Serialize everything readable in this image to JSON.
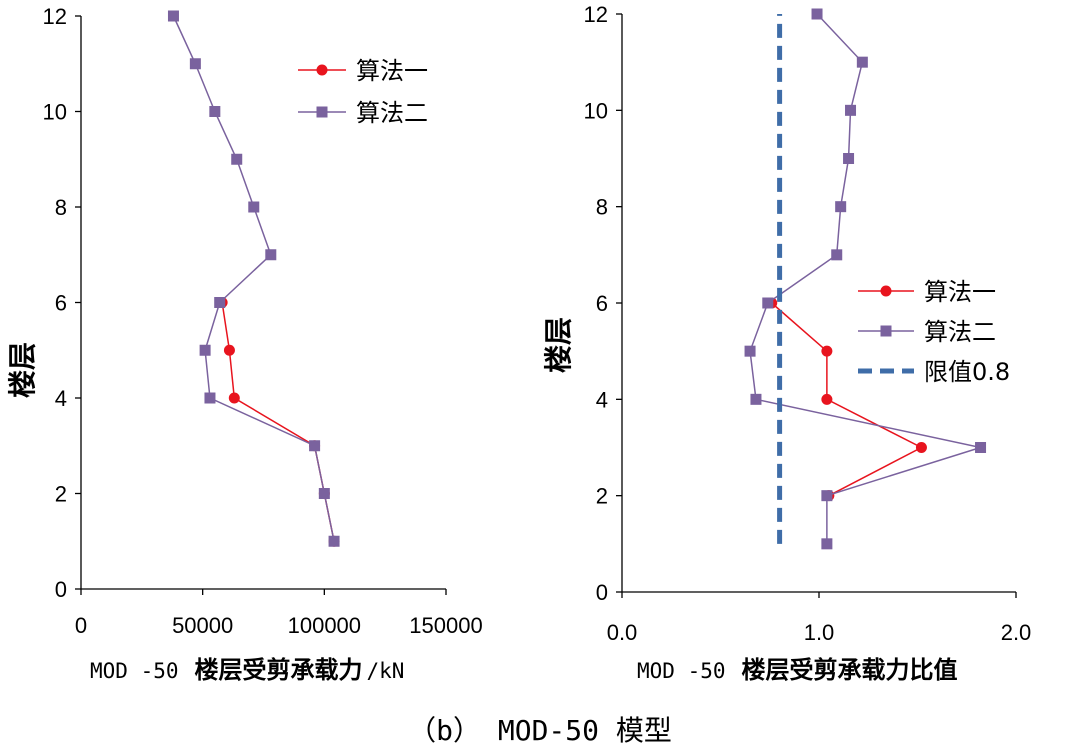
{
  "caption": "（b） MOD-50 模型",
  "chart_data": [
    {
      "type": "line",
      "ylabel": "楼层",
      "xlabel_prefix": "MOD -50",
      "xlabel_main": "楼层受剪承载力",
      "xlabel_unit": "/kN",
      "xlim": [
        0,
        150000
      ],
      "ylim": [
        0,
        12
      ],
      "xticks": [
        0,
        50000,
        100000,
        150000
      ],
      "xtick_labels": [
        "0",
        "50000",
        "100000",
        "150000"
      ],
      "yticks": [
        0,
        2,
        4,
        6,
        8,
        10,
        12
      ],
      "ytick_labels": [
        "0",
        "2",
        "4",
        "6",
        "8",
        "10",
        "12"
      ],
      "legend_position": "top-right",
      "series": [
        {
          "name": "算法一",
          "color": "#e8141e",
          "marker": "circle",
          "points": [
            [
              104000,
              1
            ],
            [
              100000,
              2
            ],
            [
              96000,
              3
            ],
            [
              63000,
              4
            ],
            [
              61000,
              5
            ],
            [
              58000,
              6
            ]
          ]
        },
        {
          "name": "算法二",
          "color": "#7a629e",
          "marker": "square",
          "points": [
            [
              104000,
              1
            ],
            [
              100000,
              2
            ],
            [
              96000,
              3
            ],
            [
              53000,
              4
            ],
            [
              51000,
              5
            ],
            [
              57000,
              6
            ],
            [
              78000,
              7
            ],
            [
              71000,
              8
            ],
            [
              64000,
              9
            ],
            [
              55000,
              10
            ],
            [
              47000,
              11
            ],
            [
              38000,
              12
            ]
          ]
        }
      ]
    },
    {
      "type": "line",
      "ylabel": "楼层",
      "xlabel_prefix": "MOD -50",
      "xlabel_main": "楼层受剪承载力比值",
      "xlim": [
        0,
        2
      ],
      "ylim": [
        0,
        12
      ],
      "xticks": [
        0,
        1,
        2
      ],
      "xtick_labels": [
        "0.0",
        "1.0",
        "2.0"
      ],
      "yticks": [
        0,
        2,
        4,
        6,
        8,
        10,
        12
      ],
      "ytick_labels": [
        "0",
        "2",
        "4",
        "6",
        "8",
        "10",
        "12"
      ],
      "legend_position": "center-right",
      "series": [
        {
          "name": "算法一",
          "color": "#e8141e",
          "marker": "circle",
          "points": [
            [
              1.05,
              2
            ],
            [
              1.52,
              3
            ],
            [
              1.04,
              4
            ],
            [
              1.04,
              5
            ],
            [
              0.76,
              6
            ]
          ]
        },
        {
          "name": "算法二",
          "color": "#7a629e",
          "marker": "square",
          "points": [
            [
              1.04,
              1
            ],
            [
              1.04,
              2
            ],
            [
              1.82,
              3
            ],
            [
              0.68,
              4
            ],
            [
              0.65,
              5
            ],
            [
              0.74,
              6
            ],
            [
              1.09,
              7
            ],
            [
              1.11,
              8
            ],
            [
              1.15,
              9
            ],
            [
              1.16,
              10
            ],
            [
              1.22,
              11
            ],
            [
              0.99,
              12
            ]
          ]
        },
        {
          "name": "限值0.8",
          "color": "#3f6da8",
          "style": "dashed",
          "x": 0.8,
          "yrange": [
            1,
            12
          ]
        }
      ]
    }
  ]
}
